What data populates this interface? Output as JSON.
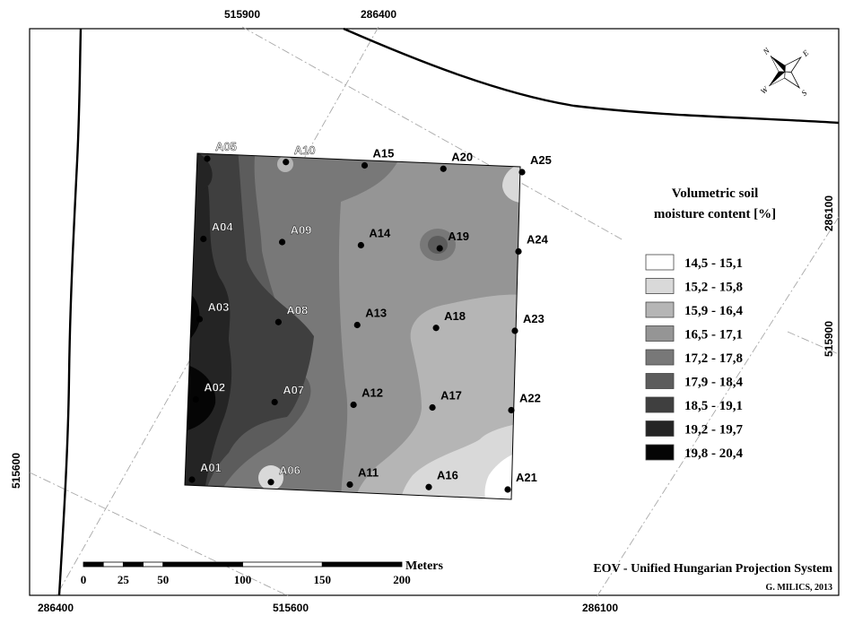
{
  "coordinates": {
    "top": [
      "515900",
      "286400"
    ],
    "bottom": [
      "286400",
      "515600",
      "286100"
    ],
    "left": [
      "515600"
    ],
    "right": [
      "286100",
      "515900"
    ]
  },
  "points": [
    {
      "id": "A01"
    },
    {
      "id": "A02"
    },
    {
      "id": "A03"
    },
    {
      "id": "A04"
    },
    {
      "id": "A05"
    },
    {
      "id": "A06"
    },
    {
      "id": "A07"
    },
    {
      "id": "A08"
    },
    {
      "id": "A09"
    },
    {
      "id": "A10"
    },
    {
      "id": "A11"
    },
    {
      "id": "A12"
    },
    {
      "id": "A13"
    },
    {
      "id": "A14"
    },
    {
      "id": "A15"
    },
    {
      "id": "A16"
    },
    {
      "id": "A17"
    },
    {
      "id": "A18"
    },
    {
      "id": "A19"
    },
    {
      "id": "A20"
    },
    {
      "id": "A21"
    },
    {
      "id": "A22"
    },
    {
      "id": "A23"
    },
    {
      "id": "A24"
    },
    {
      "id": "A25"
    }
  ],
  "legend": {
    "title_line1": "Volumetric soil",
    "title_line2": "moisture content [%]",
    "classes": [
      {
        "label": "14,5 - 15,1",
        "color": "#ffffff"
      },
      {
        "label": "15,2 - 15,8",
        "color": "#d9d9d9"
      },
      {
        "label": "15,9 - 16,4",
        "color": "#b5b5b5"
      },
      {
        "label": "16,5 - 17,1",
        "color": "#959595"
      },
      {
        "label": "17,2 - 17,8",
        "color": "#787878"
      },
      {
        "label": "17,9 - 18,4",
        "color": "#5c5c5c"
      },
      {
        "label": "18,5 - 19,1",
        "color": "#3f3f3f"
      },
      {
        "label": "19,2 - 19,7",
        "color": "#242424"
      },
      {
        "label": "19,8 - 20,4",
        "color": "#050505"
      }
    ]
  },
  "scalebar": {
    "unit": "Meters",
    "ticks": [
      "0",
      "25",
      "50",
      "100",
      "150",
      "200"
    ]
  },
  "projection": "EOV - Unified Hungarian Projection System",
  "credit": "G. MILICS, 2013",
  "north_arrow": {
    "icon": "compass-rose-icon",
    "letters": [
      "N",
      "E",
      "S",
      "W"
    ]
  }
}
